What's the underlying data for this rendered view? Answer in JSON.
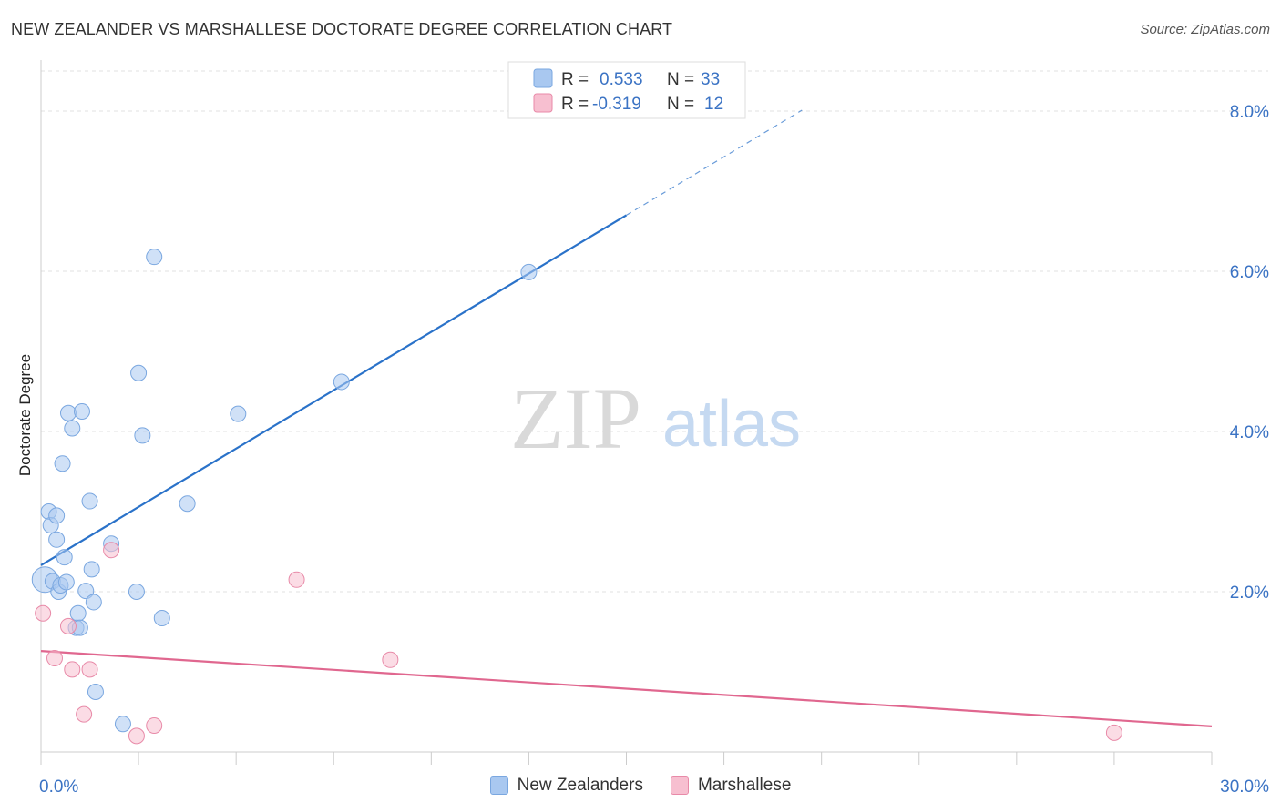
{
  "chart_data": {
    "type": "scatter",
    "title": "NEW ZEALANDER VS MARSHALLESE DOCTORATE DEGREE CORRELATION CHART",
    "source": "Source: ZipAtlas.com",
    "watermark": {
      "zip": "ZIP",
      "atlas": "atlas"
    },
    "xlabel": "",
    "ylabel": "Doctorate Degree",
    "xlim": [
      0,
      30
    ],
    "ylim": [
      0,
      8.5
    ],
    "x_tick_labels": [
      {
        "value": 0,
        "label": "0.0%"
      },
      {
        "value": 30,
        "label": "30.0%"
      }
    ],
    "y_tick_labels": [
      {
        "value": 2,
        "label": "2.0%"
      },
      {
        "value": 4,
        "label": "4.0%"
      },
      {
        "value": 6,
        "label": "6.0%"
      },
      {
        "value": 8,
        "label": "8.0%"
      }
    ],
    "series": [
      {
        "name": "New Zealanders",
        "color": "#a9c8f0",
        "stroke": "#7aa7e0",
        "line_color": "#2a72c9",
        "R": "0.533",
        "N": "33",
        "trend": {
          "x0": 0.0,
          "y0": 2.33,
          "x1": 15.0,
          "y1": 6.7,
          "x_dash_end": 19.5
        },
        "points": [
          {
            "x": 0.1,
            "y": 2.15,
            "big": true
          },
          {
            "x": 0.2,
            "y": 3.0
          },
          {
            "x": 0.25,
            "y": 2.83
          },
          {
            "x": 0.3,
            "y": 2.13
          },
          {
            "x": 0.4,
            "y": 2.65
          },
          {
            "x": 0.4,
            "y": 2.95
          },
          {
            "x": 0.45,
            "y": 2.0
          },
          {
            "x": 0.5,
            "y": 2.08
          },
          {
            "x": 0.55,
            "y": 3.6
          },
          {
            "x": 0.6,
            "y": 2.43
          },
          {
            "x": 0.65,
            "y": 2.12
          },
          {
            "x": 0.7,
            "y": 4.23
          },
          {
            "x": 0.8,
            "y": 4.04
          },
          {
            "x": 0.9,
            "y": 1.55
          },
          {
            "x": 0.95,
            "y": 1.73
          },
          {
            "x": 1.0,
            "y": 1.55
          },
          {
            "x": 1.05,
            "y": 4.25
          },
          {
            "x": 1.15,
            "y": 2.01
          },
          {
            "x": 1.25,
            "y": 3.13
          },
          {
            "x": 1.3,
            "y": 2.28
          },
          {
            "x": 1.35,
            "y": 1.87
          },
          {
            "x": 1.4,
            "y": 0.75
          },
          {
            "x": 1.8,
            "y": 2.6
          },
          {
            "x": 2.1,
            "y": 0.35
          },
          {
            "x": 2.45,
            "y": 2.0
          },
          {
            "x": 2.5,
            "y": 4.73
          },
          {
            "x": 2.6,
            "y": 3.95
          },
          {
            "x": 2.9,
            "y": 6.18
          },
          {
            "x": 3.1,
            "y": 1.67
          },
          {
            "x": 3.75,
            "y": 3.1
          },
          {
            "x": 5.05,
            "y": 4.22
          },
          {
            "x": 7.7,
            "y": 4.62
          },
          {
            "x": 12.5,
            "y": 5.99
          }
        ]
      },
      {
        "name": "Marshallese",
        "color": "#f7bfd0",
        "stroke": "#e88aa8",
        "line_color": "#e0678f",
        "R": "-0.319",
        "N": "12",
        "trend": {
          "x0": 0.0,
          "y0": 1.26,
          "x1": 30.0,
          "y1": 0.32
        },
        "points": [
          {
            "x": 0.05,
            "y": 1.73
          },
          {
            "x": 0.35,
            "y": 1.17
          },
          {
            "x": 0.7,
            "y": 1.57
          },
          {
            "x": 0.8,
            "y": 1.03
          },
          {
            "x": 1.1,
            "y": 0.47
          },
          {
            "x": 1.25,
            "y": 1.03
          },
          {
            "x": 1.8,
            "y": 2.52
          },
          {
            "x": 2.45,
            "y": 0.2
          },
          {
            "x": 2.9,
            "y": 0.33
          },
          {
            "x": 6.55,
            "y": 2.15
          },
          {
            "x": 8.95,
            "y": 1.15
          },
          {
            "x": 27.5,
            "y": 0.24
          }
        ]
      }
    ],
    "legend_labels": {
      "r": "R =",
      "n": "N ="
    }
  }
}
